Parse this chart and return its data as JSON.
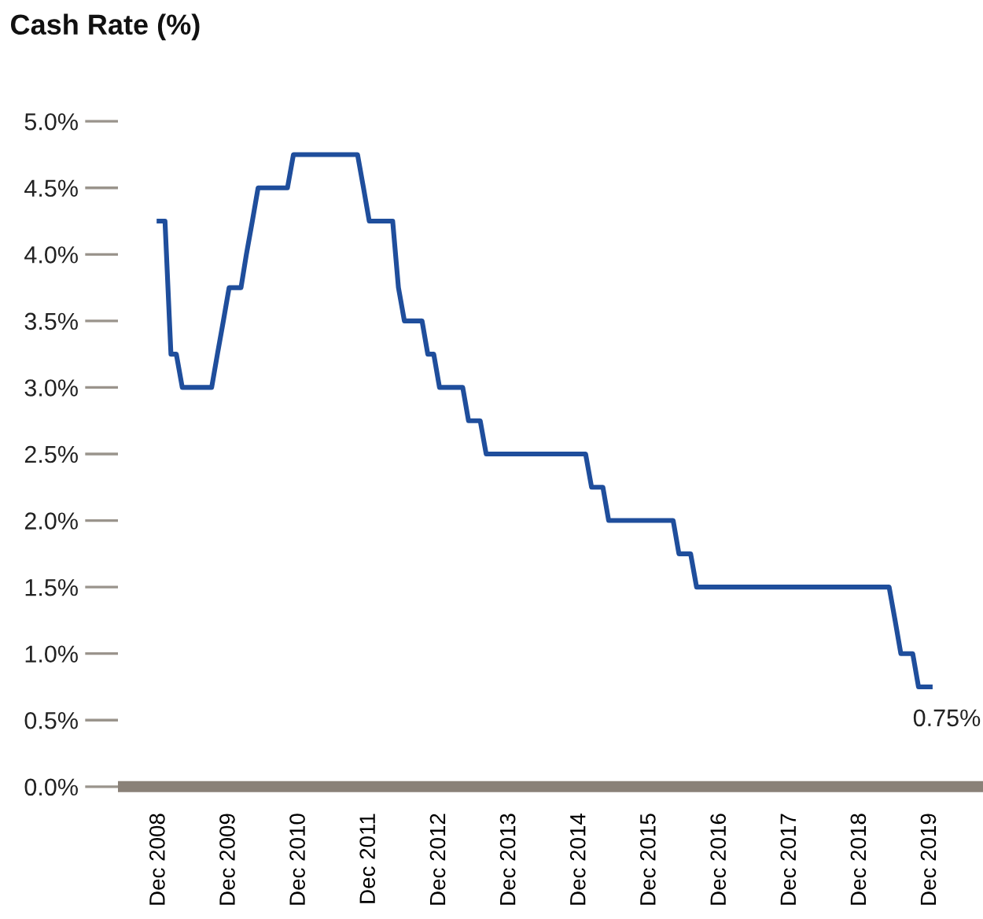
{
  "chart_data": {
    "type": "line",
    "title": "Cash Rate (%)",
    "x": [
      "2008-12",
      "2009-01",
      "2009-02",
      "2009-03",
      "2009-04",
      "2009-09",
      "2009-10",
      "2009-11",
      "2009-12",
      "2010-02",
      "2010-03",
      "2010-04",
      "2010-05",
      "2010-10",
      "2010-11",
      "2011-10",
      "2011-11",
      "2011-12",
      "2012-04",
      "2012-05",
      "2012-06",
      "2012-09",
      "2012-10",
      "2012-11",
      "2012-12",
      "2013-04",
      "2013-05",
      "2013-07",
      "2013-08",
      "2015-01",
      "2015-02",
      "2015-04",
      "2015-05",
      "2016-04",
      "2016-05",
      "2016-07",
      "2016-08",
      "2019-05",
      "2019-06",
      "2019-07",
      "2019-09",
      "2019-10",
      "2019-12"
    ],
    "series": [
      {
        "color": "#1f4e9c",
        "values": [
          4.25,
          4.25,
          3.25,
          3.25,
          3.0,
          3.0,
          3.25,
          3.5,
          3.75,
          3.75,
          4.0,
          4.25,
          4.5,
          4.5,
          4.75,
          4.75,
          4.5,
          4.25,
          4.25,
          3.75,
          3.5,
          3.5,
          3.25,
          3.25,
          3.0,
          3.0,
          2.75,
          2.75,
          2.5,
          2.5,
          2.25,
          2.25,
          2.0,
          2.0,
          1.75,
          1.75,
          1.5,
          1.5,
          1.25,
          1.0,
          1.0,
          0.75,
          0.75
        ]
      }
    ],
    "xlim": [
      "2008-05",
      "2020-09"
    ],
    "xticks": [
      {
        "value": "2008-12",
        "label": "Dec 2008"
      },
      {
        "value": "2009-12",
        "label": "Dec 2009"
      },
      {
        "value": "2010-12",
        "label": "Dec 2010"
      },
      {
        "value": "2011-12",
        "label": "Dec 2011"
      },
      {
        "value": "2012-12",
        "label": "Dec 2012"
      },
      {
        "value": "2013-12",
        "label": "Dec 2013"
      },
      {
        "value": "2014-12",
        "label": "Dec 2014"
      },
      {
        "value": "2015-12",
        "label": "Dec 2015"
      },
      {
        "value": "2016-12",
        "label": "Dec 2016"
      },
      {
        "value": "2017-12",
        "label": "Dec 2017"
      },
      {
        "value": "2018-12",
        "label": "Dec 2018"
      },
      {
        "value": "2019-12",
        "label": "Dec 2019"
      }
    ],
    "ylim": [
      0,
      5
    ],
    "yticks": [
      {
        "value": 0,
        "label": "0.0%"
      },
      {
        "value": 0.5,
        "label": "0.5%"
      },
      {
        "value": 1,
        "label": "1.0%"
      },
      {
        "value": 1.5,
        "label": "1.5%"
      },
      {
        "value": 2,
        "label": "2.0%"
      },
      {
        "value": 2.5,
        "label": "2.5%"
      },
      {
        "value": 3,
        "label": "3.0%"
      },
      {
        "value": 3.5,
        "label": "3.5%"
      },
      {
        "value": 4,
        "label": "4.0%"
      },
      {
        "value": 4.5,
        "label": "4.5%"
      },
      {
        "value": 5,
        "label": "5.0%"
      }
    ],
    "annotations": [
      {
        "text": "0.75%",
        "x": "2019-12",
        "y": 0.75
      }
    ],
    "grid": false,
    "legend": false,
    "marker": "none",
    "line_style": "solid"
  }
}
